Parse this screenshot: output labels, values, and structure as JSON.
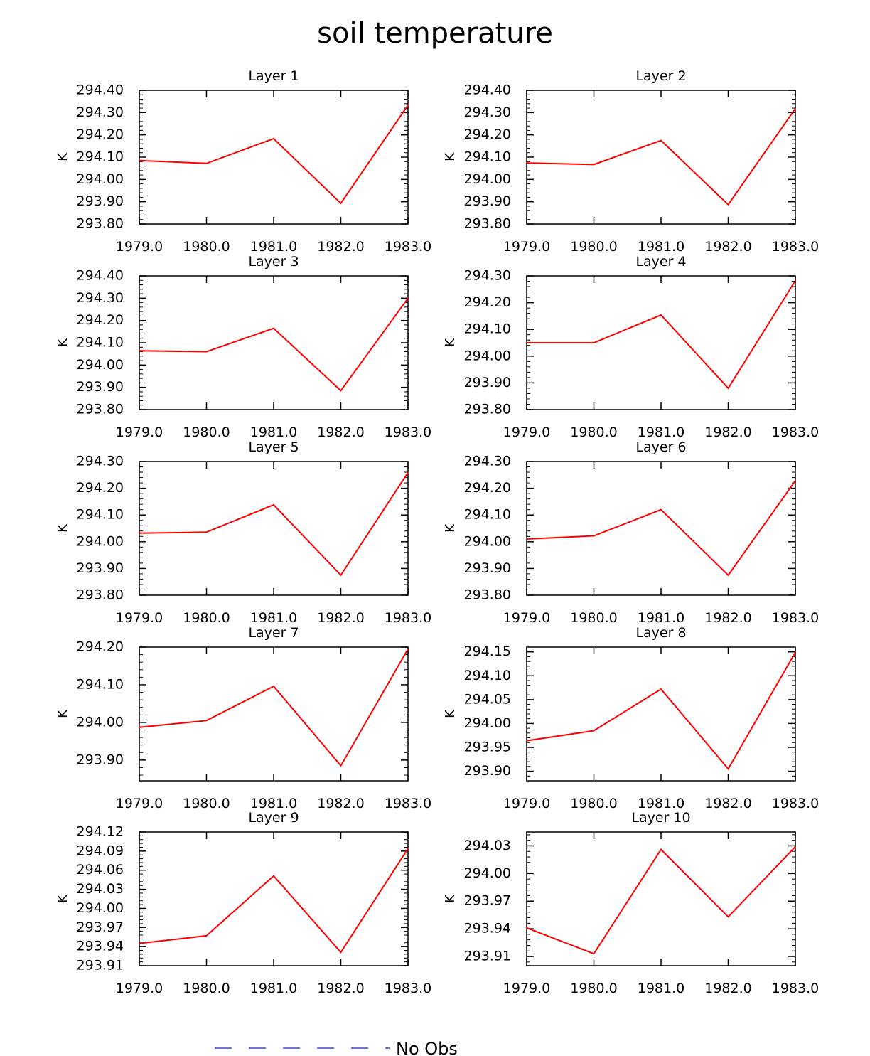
{
  "title": "soil temperature",
  "legend": {
    "label": "No Obs",
    "line_color": "#3344ff",
    "line_style": "dashed"
  },
  "line_color": "#ff0000",
  "chart_data": [
    {
      "type": "line",
      "title": "Layer 1",
      "ylabel": "K",
      "x": [
        1979,
        1980,
        1981,
        1982,
        1983
      ],
      "xticks": [
        "1979.0",
        "1980.0",
        "1981.0",
        "1982.0",
        "1983.0"
      ],
      "ylim": [
        293.8,
        294.4
      ],
      "yticks": [
        "293.80",
        "293.90",
        "294.00",
        "294.10",
        "294.20",
        "294.30",
        "294.40"
      ],
      "series": [
        {
          "values": [
            294.085,
            294.072,
            294.183,
            293.893,
            294.333
          ]
        }
      ]
    },
    {
      "type": "line",
      "title": "Layer 2",
      "ylabel": "K",
      "x": [
        1979,
        1980,
        1981,
        1982,
        1983
      ],
      "xticks": [
        "1979.0",
        "1980.0",
        "1981.0",
        "1982.0",
        "1983.0"
      ],
      "ylim": [
        293.8,
        294.4
      ],
      "yticks": [
        "293.80",
        "293.90",
        "294.00",
        "294.10",
        "294.20",
        "294.30",
        "294.40"
      ],
      "series": [
        {
          "values": [
            294.074,
            294.067,
            294.175,
            293.887,
            294.318
          ]
        }
      ]
    },
    {
      "type": "line",
      "title": "Layer 3",
      "ylabel": "K",
      "x": [
        1979,
        1980,
        1981,
        1982,
        1983
      ],
      "xticks": [
        "1979.0",
        "1980.0",
        "1981.0",
        "1982.0",
        "1983.0"
      ],
      "ylim": [
        293.8,
        294.4
      ],
      "yticks": [
        "293.80",
        "293.90",
        "294.00",
        "294.10",
        "294.20",
        "294.30",
        "294.40"
      ],
      "series": [
        {
          "values": [
            294.064,
            294.06,
            294.165,
            293.885,
            294.3
          ]
        }
      ]
    },
    {
      "type": "line",
      "title": "Layer 4",
      "ylabel": "K",
      "x": [
        1979,
        1980,
        1981,
        1982,
        1983
      ],
      "xticks": [
        "1979.0",
        "1980.0",
        "1981.0",
        "1982.0",
        "1983.0"
      ],
      "ylim": [
        293.8,
        294.3
      ],
      "yticks": [
        "293.80",
        "293.90",
        "294.00",
        "294.10",
        "294.20",
        "294.30"
      ],
      "series": [
        {
          "values": [
            294.05,
            294.05,
            294.154,
            293.88,
            294.282
          ]
        }
      ]
    },
    {
      "type": "line",
      "title": "Layer 5",
      "ylabel": "K",
      "x": [
        1979,
        1980,
        1981,
        1982,
        1983
      ],
      "xticks": [
        "1979.0",
        "1980.0",
        "1981.0",
        "1982.0",
        "1983.0"
      ],
      "ylim": [
        293.8,
        294.3
      ],
      "yticks": [
        "293.80",
        "293.90",
        "294.00",
        "294.10",
        "294.20",
        "294.30"
      ],
      "series": [
        {
          "values": [
            294.032,
            294.036,
            294.138,
            293.875,
            294.259
          ]
        }
      ]
    },
    {
      "type": "line",
      "title": "Layer 6",
      "ylabel": "K",
      "x": [
        1979,
        1980,
        1981,
        1982,
        1983
      ],
      "xticks": [
        "1979.0",
        "1980.0",
        "1981.0",
        "1982.0",
        "1983.0"
      ],
      "ylim": [
        293.8,
        294.3
      ],
      "yticks": [
        "293.80",
        "293.90",
        "294.00",
        "294.10",
        "294.20",
        "294.30"
      ],
      "series": [
        {
          "values": [
            294.01,
            294.022,
            294.12,
            293.875,
            294.228
          ]
        }
      ]
    },
    {
      "type": "line",
      "title": "Layer 7",
      "ylabel": "K",
      "x": [
        1979,
        1980,
        1981,
        1982,
        1983
      ],
      "xticks": [
        "1979.0",
        "1980.0",
        "1981.0",
        "1982.0",
        "1983.0"
      ],
      "ylim": [
        293.845,
        294.2
      ],
      "yticks": [
        "293.90",
        "294.00",
        "294.10",
        "294.20"
      ],
      "series": [
        {
          "values": [
            293.987,
            294.005,
            294.096,
            293.885,
            294.195
          ]
        }
      ]
    },
    {
      "type": "line",
      "title": "Layer 8",
      "ylabel": "K",
      "x": [
        1979,
        1980,
        1981,
        1982,
        1983
      ],
      "xticks": [
        "1979.0",
        "1980.0",
        "1981.0",
        "1982.0",
        "1983.0"
      ],
      "ylim": [
        293.88,
        294.16
      ],
      "yticks": [
        "293.90",
        "293.95",
        "294.00",
        "294.05",
        "294.10",
        "294.15"
      ],
      "series": [
        {
          "values": [
            293.964,
            293.985,
            294.072,
            293.905,
            294.149
          ]
        }
      ]
    },
    {
      "type": "line",
      "title": "Layer 9",
      "ylabel": "K",
      "x": [
        1979,
        1980,
        1981,
        1982,
        1983
      ],
      "xticks": [
        "1979.0",
        "1980.0",
        "1981.0",
        "1982.0",
        "1983.0"
      ],
      "ylim": [
        293.91,
        294.12
      ],
      "yticks": [
        "293.91",
        "293.94",
        "293.97",
        "294.00",
        "294.03",
        "294.06",
        "294.09",
        "294.12"
      ],
      "series": [
        {
          "values": [
            293.945,
            293.957,
            294.051,
            293.931,
            294.094
          ]
        }
      ]
    },
    {
      "type": "line",
      "title": "Layer 10",
      "ylabel": "K",
      "x": [
        1979,
        1980,
        1981,
        1982,
        1983
      ],
      "xticks": [
        "1979.0",
        "1980.0",
        "1981.0",
        "1982.0",
        "1983.0"
      ],
      "ylim": [
        293.9,
        294.045
      ],
      "yticks": [
        "293.91",
        "293.94",
        "293.97",
        "294.00",
        "294.03"
      ],
      "series": [
        {
          "values": [
            293.941,
            293.913,
            294.026,
            293.953,
            294.029
          ]
        }
      ]
    }
  ]
}
